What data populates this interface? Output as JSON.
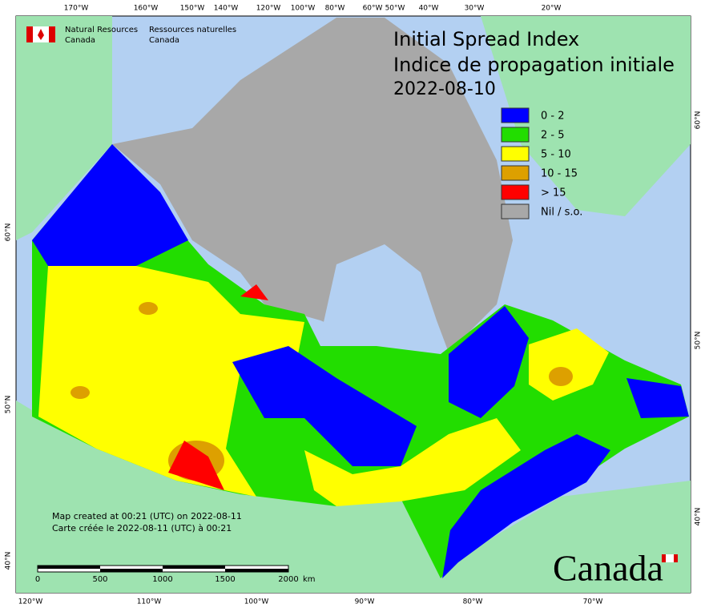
{
  "header": {
    "agency_en": "Natural Resources",
    "country_en": "Canada",
    "agency_fr": "Ressources naturelles",
    "country_fr": "Canada"
  },
  "title": {
    "line1": "Initial Spread Index",
    "line2": "Indice de propagation initiale",
    "date": "2022-08-10"
  },
  "legend": [
    {
      "label": "0 - 2",
      "color": "#0000ff"
    },
    {
      "label": "2 - 5",
      "color": "#22dd00"
    },
    {
      "label": "5 - 10",
      "color": "#ffff00"
    },
    {
      "label": "10 - 15",
      "color": "#dda000"
    },
    {
      "label": "> 15",
      "color": "#ff0000"
    },
    {
      "label": "Nil / s.o.",
      "color": "#a8a8a8"
    }
  ],
  "graticule": {
    "top": [
      "170°W",
      "160°W",
      "150°W",
      "140°W",
      "120°W",
      "100°W",
      "80°W",
      "60°W",
      "50°W",
      "40°W",
      "30°W",
      "20°W"
    ],
    "bottom": [
      "120°W",
      "110°W",
      "100°W",
      "90°W",
      "80°W",
      "70°W"
    ],
    "left": [
      "60°N",
      "50°N",
      "40°N"
    ],
    "right": [
      "60°N",
      "50°N",
      "40°N"
    ]
  },
  "notes": [
    "Map created at 00:21 (UTC) on 2022-08-11",
    "Carte créée le 2022-08-11 (UTC) à 00:21"
  ],
  "scale_bar": {
    "labels": [
      "0",
      "500",
      "1000",
      "1500",
      "2000"
    ],
    "unit": "km"
  },
  "wordmark": "Canada"
}
